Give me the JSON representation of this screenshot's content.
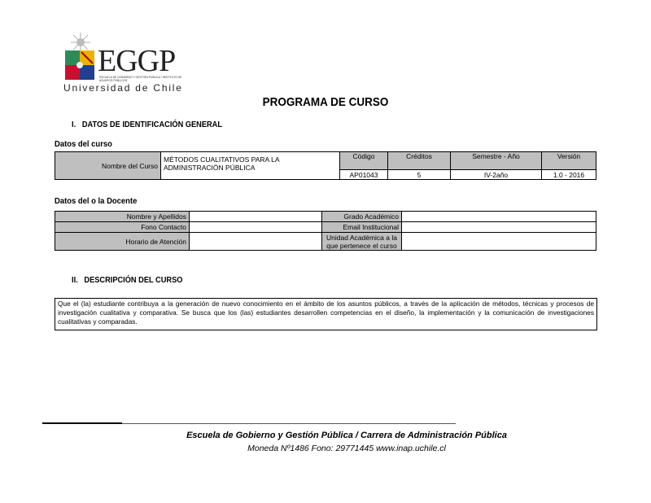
{
  "logo": {
    "text": "EGGP",
    "subtitle": "ESCUELA DE GOBIERNO Y GESTIÓN PÚBLICA / INSTITUTO DE ASUNTOS PÚBLICOS",
    "university": "Universidad de Chile"
  },
  "title": "PROGRAMA DE CURSO",
  "section1": {
    "number": "I.",
    "title": "DATOS DE IDENTIFICACIÓN GENERAL"
  },
  "course": {
    "heading": "Datos del curso",
    "name_label": "Nombre del Curso",
    "name_value": "MÉTODOS CUALITATIVOS PARA LA ADMINISTRACIÓN PÚBLICA",
    "columns": [
      "Código",
      "Créditos",
      "Semestre - Año",
      "Versión"
    ],
    "values": [
      "AP01043",
      "5",
      "IV-2año",
      "1.0 - 2016"
    ]
  },
  "teacher": {
    "heading": "Datos del o la Docente",
    "rows": [
      {
        "left_label": "Nombre y Apellidos",
        "left_value": "",
        "right_label": "Grado Académico",
        "right_value": ""
      },
      {
        "left_label": "Fono Contacto",
        "left_value": "",
        "right_label": "Email Institucional",
        "right_value": ""
      },
      {
        "left_label": "Horario de Atención",
        "left_value": "",
        "right_label": "Unidad Académica a la que pertenece el curso",
        "right_value": ""
      }
    ]
  },
  "section2": {
    "number": "II.",
    "title": "DESCRIPCIÓN DEL CURSO"
  },
  "description": "Que el (la) estudiante contribuya a la generación de nuevo conocimiento en el ámbito de los asuntos públicos, a través de la aplicación de métodos, técnicas y procesos de investigación cualitativa y comparativa. Se busca que los (las) estudiantes desarrollen competencias en el diseño, la implementación y la comunicación de investigaciones cualitativas y comparadas.",
  "footer": {
    "line1": "Escuela de Gobierno y Gestión Pública / Carrera de Administración Pública",
    "line2": "Moneda Nº1486  Fono: 29771445  www.inap.uchile.cl"
  }
}
